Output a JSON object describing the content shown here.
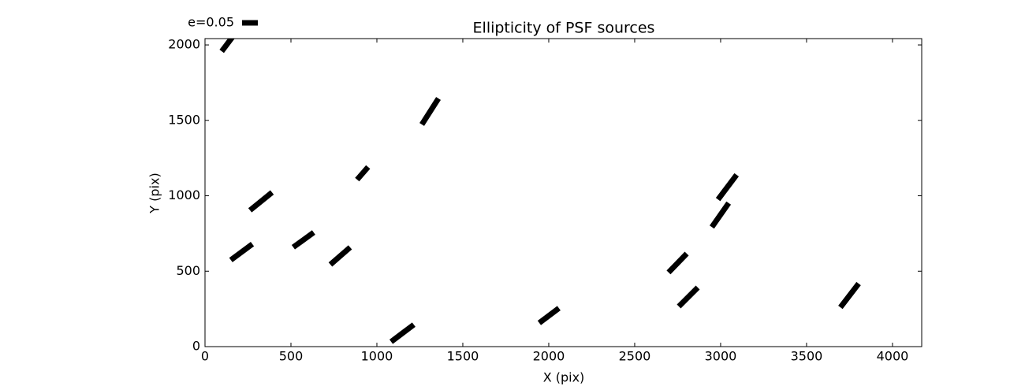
{
  "chart_data": {
    "type": "quiver",
    "title": "Ellipticity of PSF sources",
    "x_label": "X (pix)",
    "y_label": "Y (pix)",
    "key": {
      "value": 0.05,
      "label": "e=0.05"
    },
    "color": "#000000",
    "x": [
      147,
      1310,
      917,
      326,
      213,
      573,
      787,
      1149,
      2002,
      3039,
      2998,
      2750,
      2812,
      3750
    ],
    "y": [
      2033,
      1559,
      1149,
      963,
      627,
      708,
      601,
      89,
      206,
      1057,
      872,
      554,
      329,
      339
    ],
    "e": [
      0.09,
      0.098,
      0.053,
      0.09,
      0.085,
      0.08,
      0.083,
      0.09,
      0.078,
      0.098,
      0.093,
      0.083,
      0.085,
      0.095
    ],
    "angle": [
      53,
      57.5,
      49,
      39,
      36.5,
      36,
      41,
      37,
      37,
      53,
      55,
      46,
      45,
      52.5
    ],
    "xlim": [
      0,
      4170
    ],
    "ylim": [
      0,
      2042
    ],
    "xticks": [
      0,
      500,
      1000,
      1500,
      2000,
      2500,
      3000,
      3500,
      4000
    ],
    "yticks": [
      0,
      500,
      1000,
      1500,
      2000
    ],
    "grid": false
  }
}
